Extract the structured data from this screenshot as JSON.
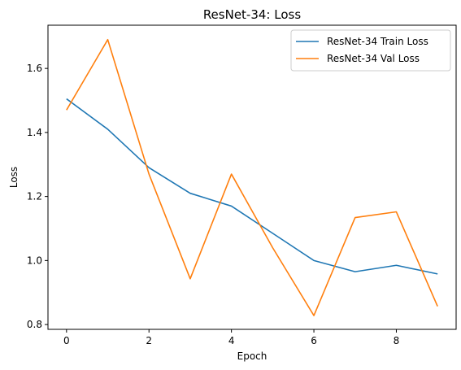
{
  "chart_data": {
    "type": "line",
    "title": "ResNet-34: Loss",
    "xlabel": "Epoch",
    "ylabel": "Loss",
    "x": [
      0,
      1,
      2,
      3,
      4,
      5,
      6,
      7,
      8,
      9
    ],
    "xlim": [
      -0.45,
      9.45
    ],
    "ylim": [
      0.785,
      1.735
    ],
    "xticks": [
      0,
      2,
      4,
      6,
      8
    ],
    "yticks": [
      0.8,
      1.0,
      1.2,
      1.4,
      1.6
    ],
    "xtick_labels": [
      "0",
      "2",
      "4",
      "6",
      "8"
    ],
    "ytick_labels": [
      "0.8",
      "1.0",
      "1.2",
      "1.4",
      "1.6"
    ],
    "grid": false,
    "legend_position": "top-right",
    "series": [
      {
        "name": "ResNet-34 Train Loss",
        "color": "#1f77b4",
        "values": [
          1.505,
          1.41,
          1.29,
          1.21,
          1.17,
          1.085,
          1.0,
          0.965,
          0.985,
          0.958
        ]
      },
      {
        "name": "ResNet-34 Val Loss",
        "color": "#ff7f0e",
        "values": [
          1.47,
          1.69,
          1.27,
          0.943,
          1.27,
          1.04,
          0.828,
          1.134,
          1.152,
          0.857
        ]
      }
    ]
  }
}
